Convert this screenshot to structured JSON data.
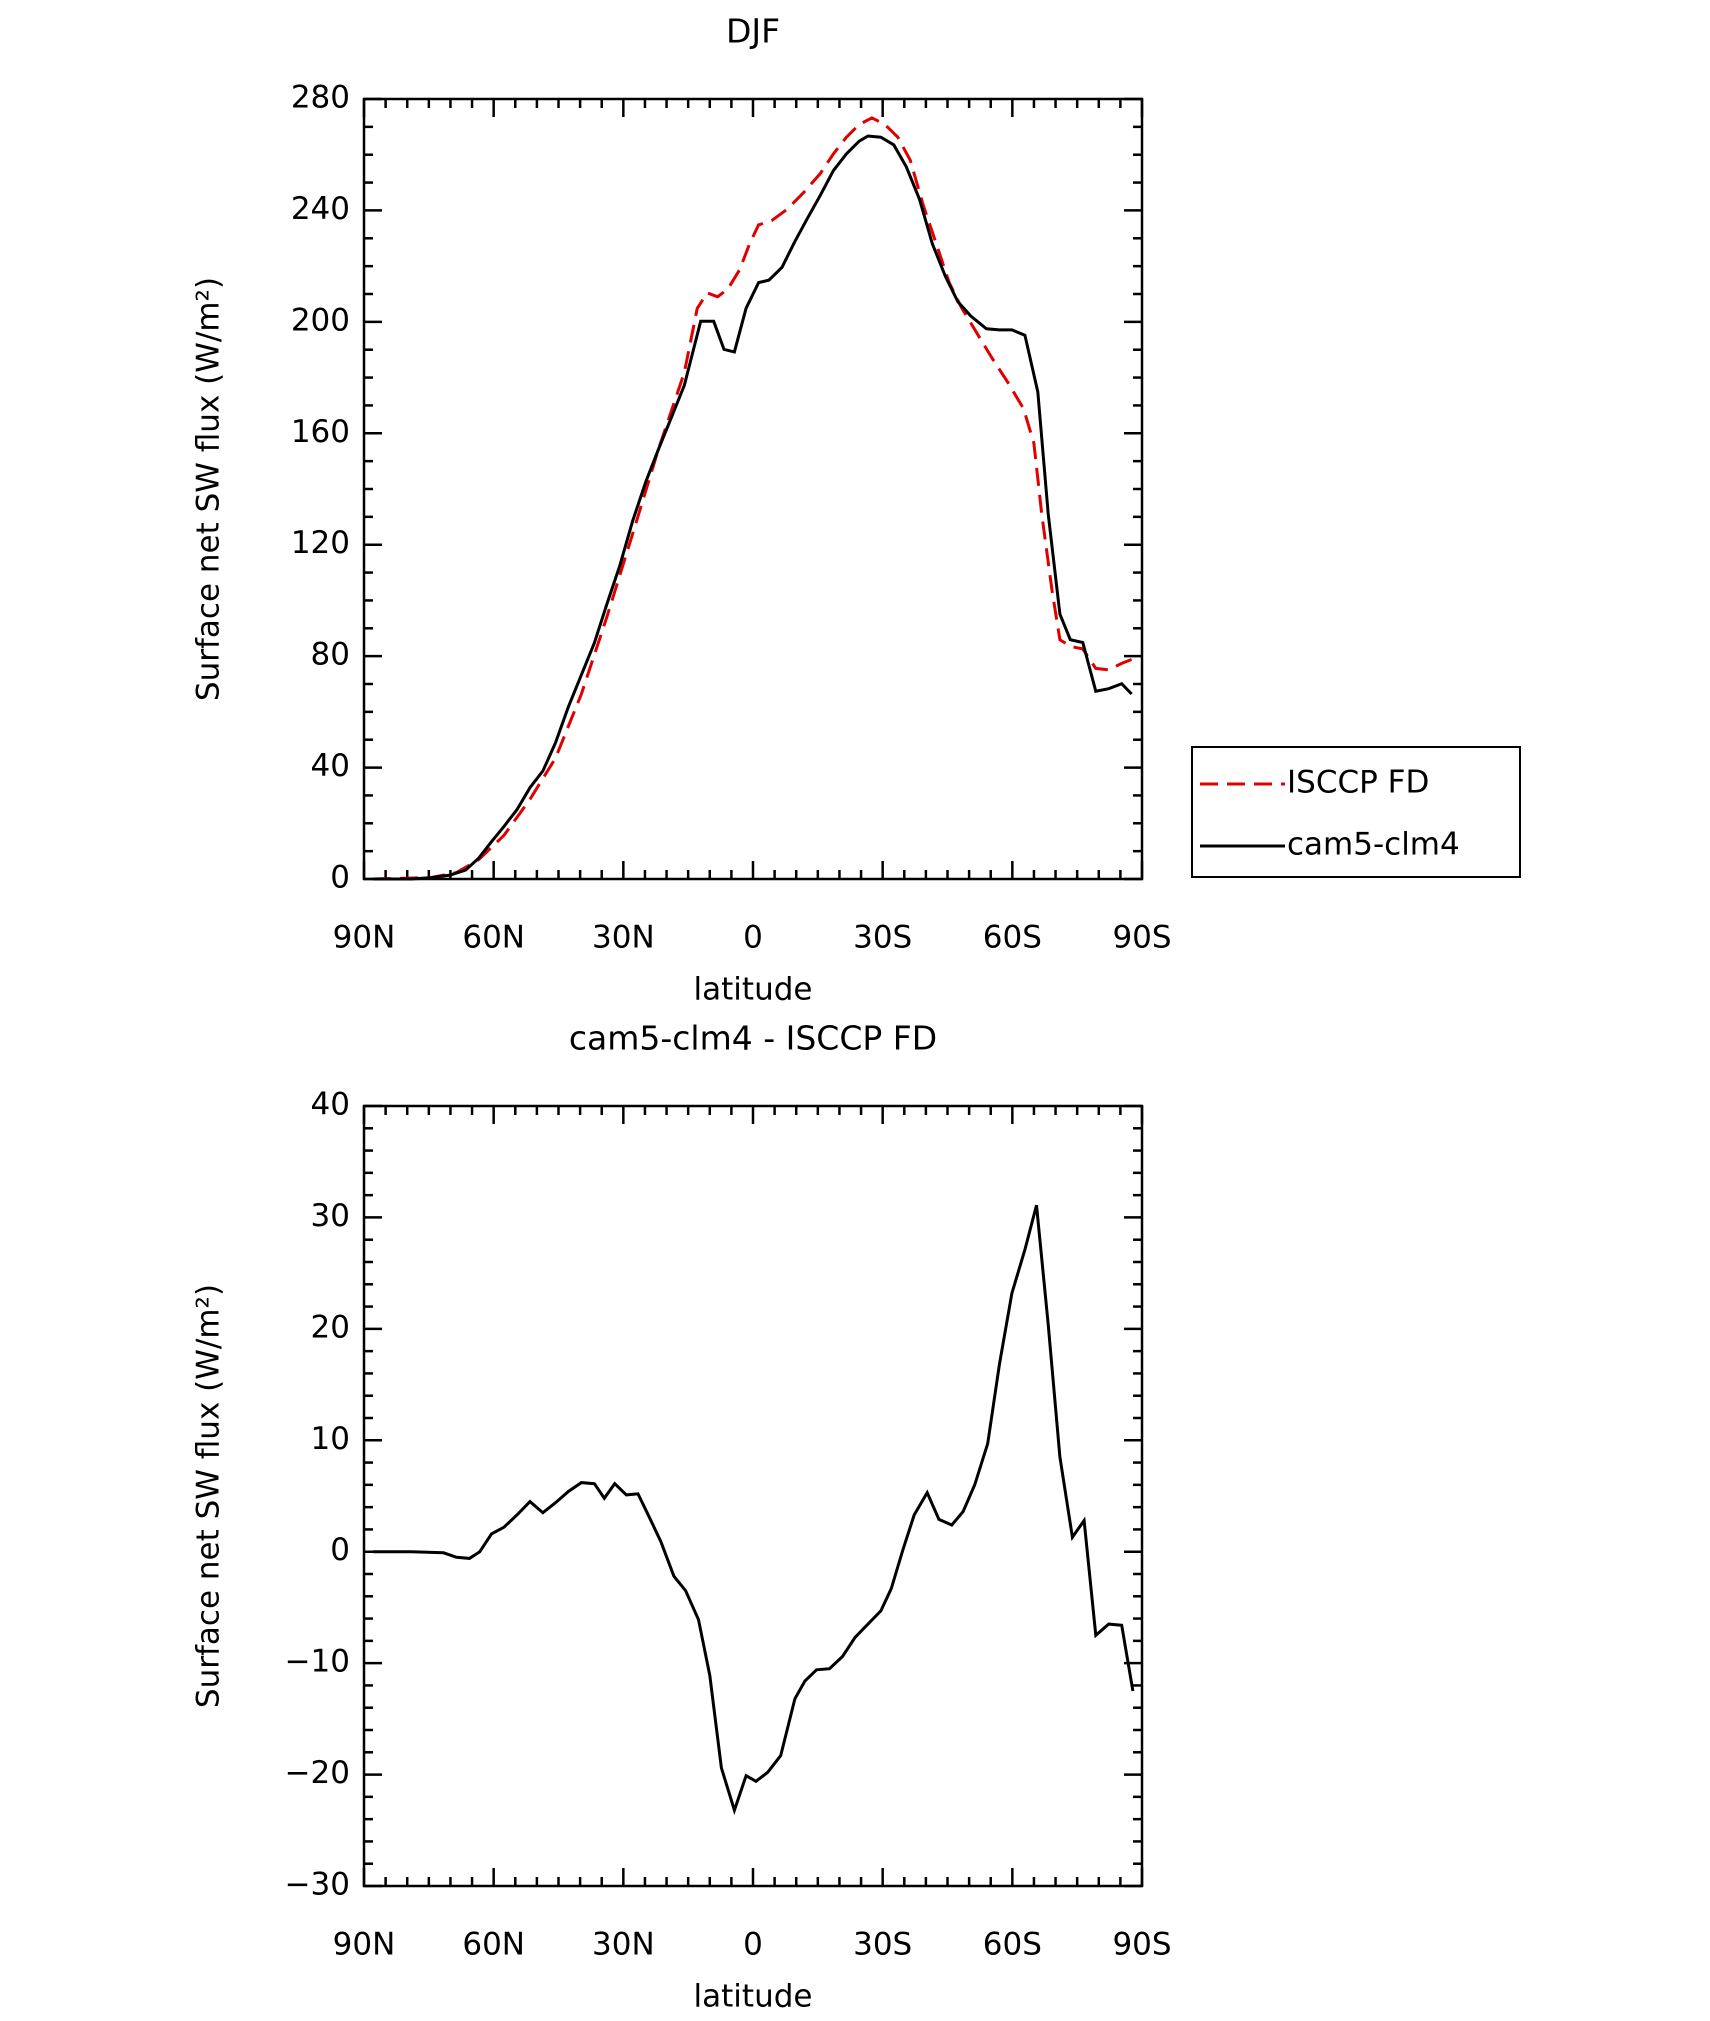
{
  "chart_data": [
    {
      "type": "line",
      "title": "DJF",
      "x_label": "latitude",
      "y_label": "Surface net SW flux (W/m²)",
      "xlim": [
        90,
        -90
      ],
      "xticks": [
        {
          "value": 90,
          "label": "90N"
        },
        {
          "value": 60,
          "label": "60N"
        },
        {
          "value": 30,
          "label": "30N"
        },
        0,
        {
          "value": -30,
          "label": "30S"
        },
        {
          "value": -60,
          "label": "60S"
        },
        {
          "value": -90,
          "label": "90S"
        }
      ],
      "ylim": [
        0,
        280
      ],
      "yticks": [
        0,
        40,
        80,
        120,
        160,
        200,
        240,
        280
      ],
      "legend": "outside-right",
      "series": [
        {
          "name": "ISCCP FD",
          "color": "#e00000",
          "linestyle": "dashed",
          "x": [
            87.9,
            74.5,
            68.6,
            63.5,
            57.6,
            51.6,
            45.7,
            39.7,
            33.8,
            27.8,
            21.9,
            15.9,
            12.9,
            10.6,
            8.2,
            5.8,
            3.1,
            0.8,
            -1.3,
            -4.3,
            -7.9,
            -11.7,
            -15.6,
            -18.6,
            -21.6,
            -24.6,
            -27.5,
            -30.5,
            -33.5,
            -36.4,
            -39.4,
            -42.4,
            -45.4,
            -48.3,
            -51.9,
            -55.5,
            -59.0,
            -62.6,
            -65.0,
            -66.8,
            -69.2,
            -71.0,
            -73.4,
            -76.3,
            -79.3,
            -82.3,
            -85.3,
            -87.6
          ],
          "values": [
            0,
            0.5,
            2.3,
            6.9,
            15.7,
            28.6,
            43.4,
            66.4,
            94.1,
            124.1,
            154.1,
            181.8,
            204.8,
            210.4,
            209.0,
            211.8,
            218.7,
            227.9,
            234.8,
            236.3,
            240.4,
            246.4,
            253.3,
            260.3,
            266.3,
            270.9,
            273.2,
            270.9,
            266.3,
            258.0,
            241.8,
            228.0,
            214.1,
            204.9,
            195.7,
            186.5,
            178.2,
            168.8,
            156.4,
            131.1,
            103.4,
            85.9,
            83.5,
            82.6,
            75.6,
            75.1,
            77.4,
            78.8
          ]
        },
        {
          "name": "cam5-clm4",
          "color": "#000000",
          "linestyle": "solid",
          "x": [
            87.9,
            79.0,
            74.5,
            70.1,
            66.5,
            63.5,
            60.5,
            57.6,
            54.6,
            51.6,
            48.6,
            45.7,
            42.7,
            39.7,
            36.7,
            33.8,
            30.8,
            27.8,
            24.8,
            21.9,
            18.9,
            15.9,
            12.1,
            9.1,
            6.7,
            4.3,
            1.6,
            -1.3,
            -3.7,
            -6.7,
            -9.7,
            -12.6,
            -15.6,
            -18.6,
            -21.6,
            -24.6,
            -26.6,
            -29.6,
            -32.6,
            -35.5,
            -38.5,
            -41.5,
            -44.5,
            -47.4,
            -50.4,
            -54.0,
            -57.0,
            -59.9,
            -62.9,
            -65.9,
            -68.3,
            -71.0,
            -73.4,
            -76.3,
            -79.3,
            -82.3,
            -85.3,
            -87.6
          ],
          "values": [
            0,
            0,
            0.5,
            1.4,
            3.2,
            7.4,
            13.4,
            18.9,
            24.9,
            32.8,
            38.8,
            48.9,
            61.8,
            73.3,
            84.8,
            98.7,
            112.6,
            128.7,
            142.6,
            154.1,
            165.6,
            177.2,
            200.2,
            200.2,
            190.1,
            189.2,
            204.9,
            214.1,
            215.0,
            219.6,
            228.9,
            237.2,
            245.5,
            254.3,
            260.3,
            264.9,
            266.7,
            266.3,
            263.5,
            255.6,
            244.1,
            228.0,
            216.4,
            207.2,
            202.1,
            197.5,
            197.1,
            197.1,
            195.2,
            174.9,
            131.1,
            95.1,
            85.9,
            84.9,
            67.4,
            68.3,
            70.1,
            66.4
          ]
        }
      ]
    },
    {
      "type": "line",
      "title": "cam5-clm4 - ISCCP FD",
      "x_label": "latitude",
      "y_label": "Surface net SW flux (W/m²)",
      "xlim": [
        90,
        -90
      ],
      "xticks": [
        {
          "value": 90,
          "label": "90N"
        },
        {
          "value": 60,
          "label": "60N"
        },
        {
          "value": 30,
          "label": "30N"
        },
        0,
        {
          "value": -30,
          "label": "30S"
        },
        {
          "value": -60,
          "label": "60S"
        },
        {
          "value": -90,
          "label": "90S"
        }
      ],
      "ylim": [
        -30,
        40
      ],
      "yticks": [
        {
          "value": -30,
          "label": "−30"
        },
        {
          "value": -20,
          "label": "−20"
        },
        {
          "value": -10,
          "label": "−10"
        },
        0,
        10,
        20,
        30,
        40
      ],
      "color": "#000000",
      "x": [
        87.9,
        79.0,
        71.6,
        68.6,
        65.6,
        63.2,
        60.5,
        57.6,
        54.6,
        51.6,
        48.6,
        45.7,
        42.7,
        39.7,
        36.7,
        34.4,
        32.0,
        29.3,
        26.6,
        24.0,
        21.3,
        18.3,
        15.6,
        12.6,
        10.0,
        7.3,
        4.3,
        1.6,
        -0.7,
        -3.4,
        -6.4,
        -9.7,
        -12.0,
        -14.7,
        -17.7,
        -20.7,
        -23.6,
        -26.6,
        -29.6,
        -32.0,
        -34.7,
        -37.3,
        -40.3,
        -43.0,
        -46.0,
        -48.6,
        -51.3,
        -54.3,
        -57.0,
        -59.9,
        -62.9,
        -65.6,
        -68.3,
        -71.0,
        -73.9,
        -76.6,
        -79.3,
        -82.3,
        -85.3,
        -87.9
      ],
      "values": [
        0.0,
        0.0,
        -0.1,
        -0.5,
        -0.6,
        0.0,
        1.6,
        2.2,
        3.3,
        4.5,
        3.5,
        4.4,
        5.4,
        6.2,
        6.1,
        4.8,
        6.1,
        5.1,
        5.2,
        3.1,
        0.9,
        -2.2,
        -3.5,
        -6.1,
        -11.1,
        -19.4,
        -23.2,
        -20.1,
        -20.6,
        -19.8,
        -18.3,
        -13.2,
        -11.6,
        -10.6,
        -10.5,
        -9.4,
        -7.7,
        -6.5,
        -5.3,
        -3.3,
        0.2,
        3.3,
        5.3,
        2.9,
        2.4,
        3.6,
        6.0,
        9.7,
        16.8,
        23.2,
        27.1,
        31.1,
        20.4,
        8.5,
        1.3,
        2.8,
        -7.5,
        -6.5,
        -6.6,
        -12.5
      ]
    }
  ]
}
